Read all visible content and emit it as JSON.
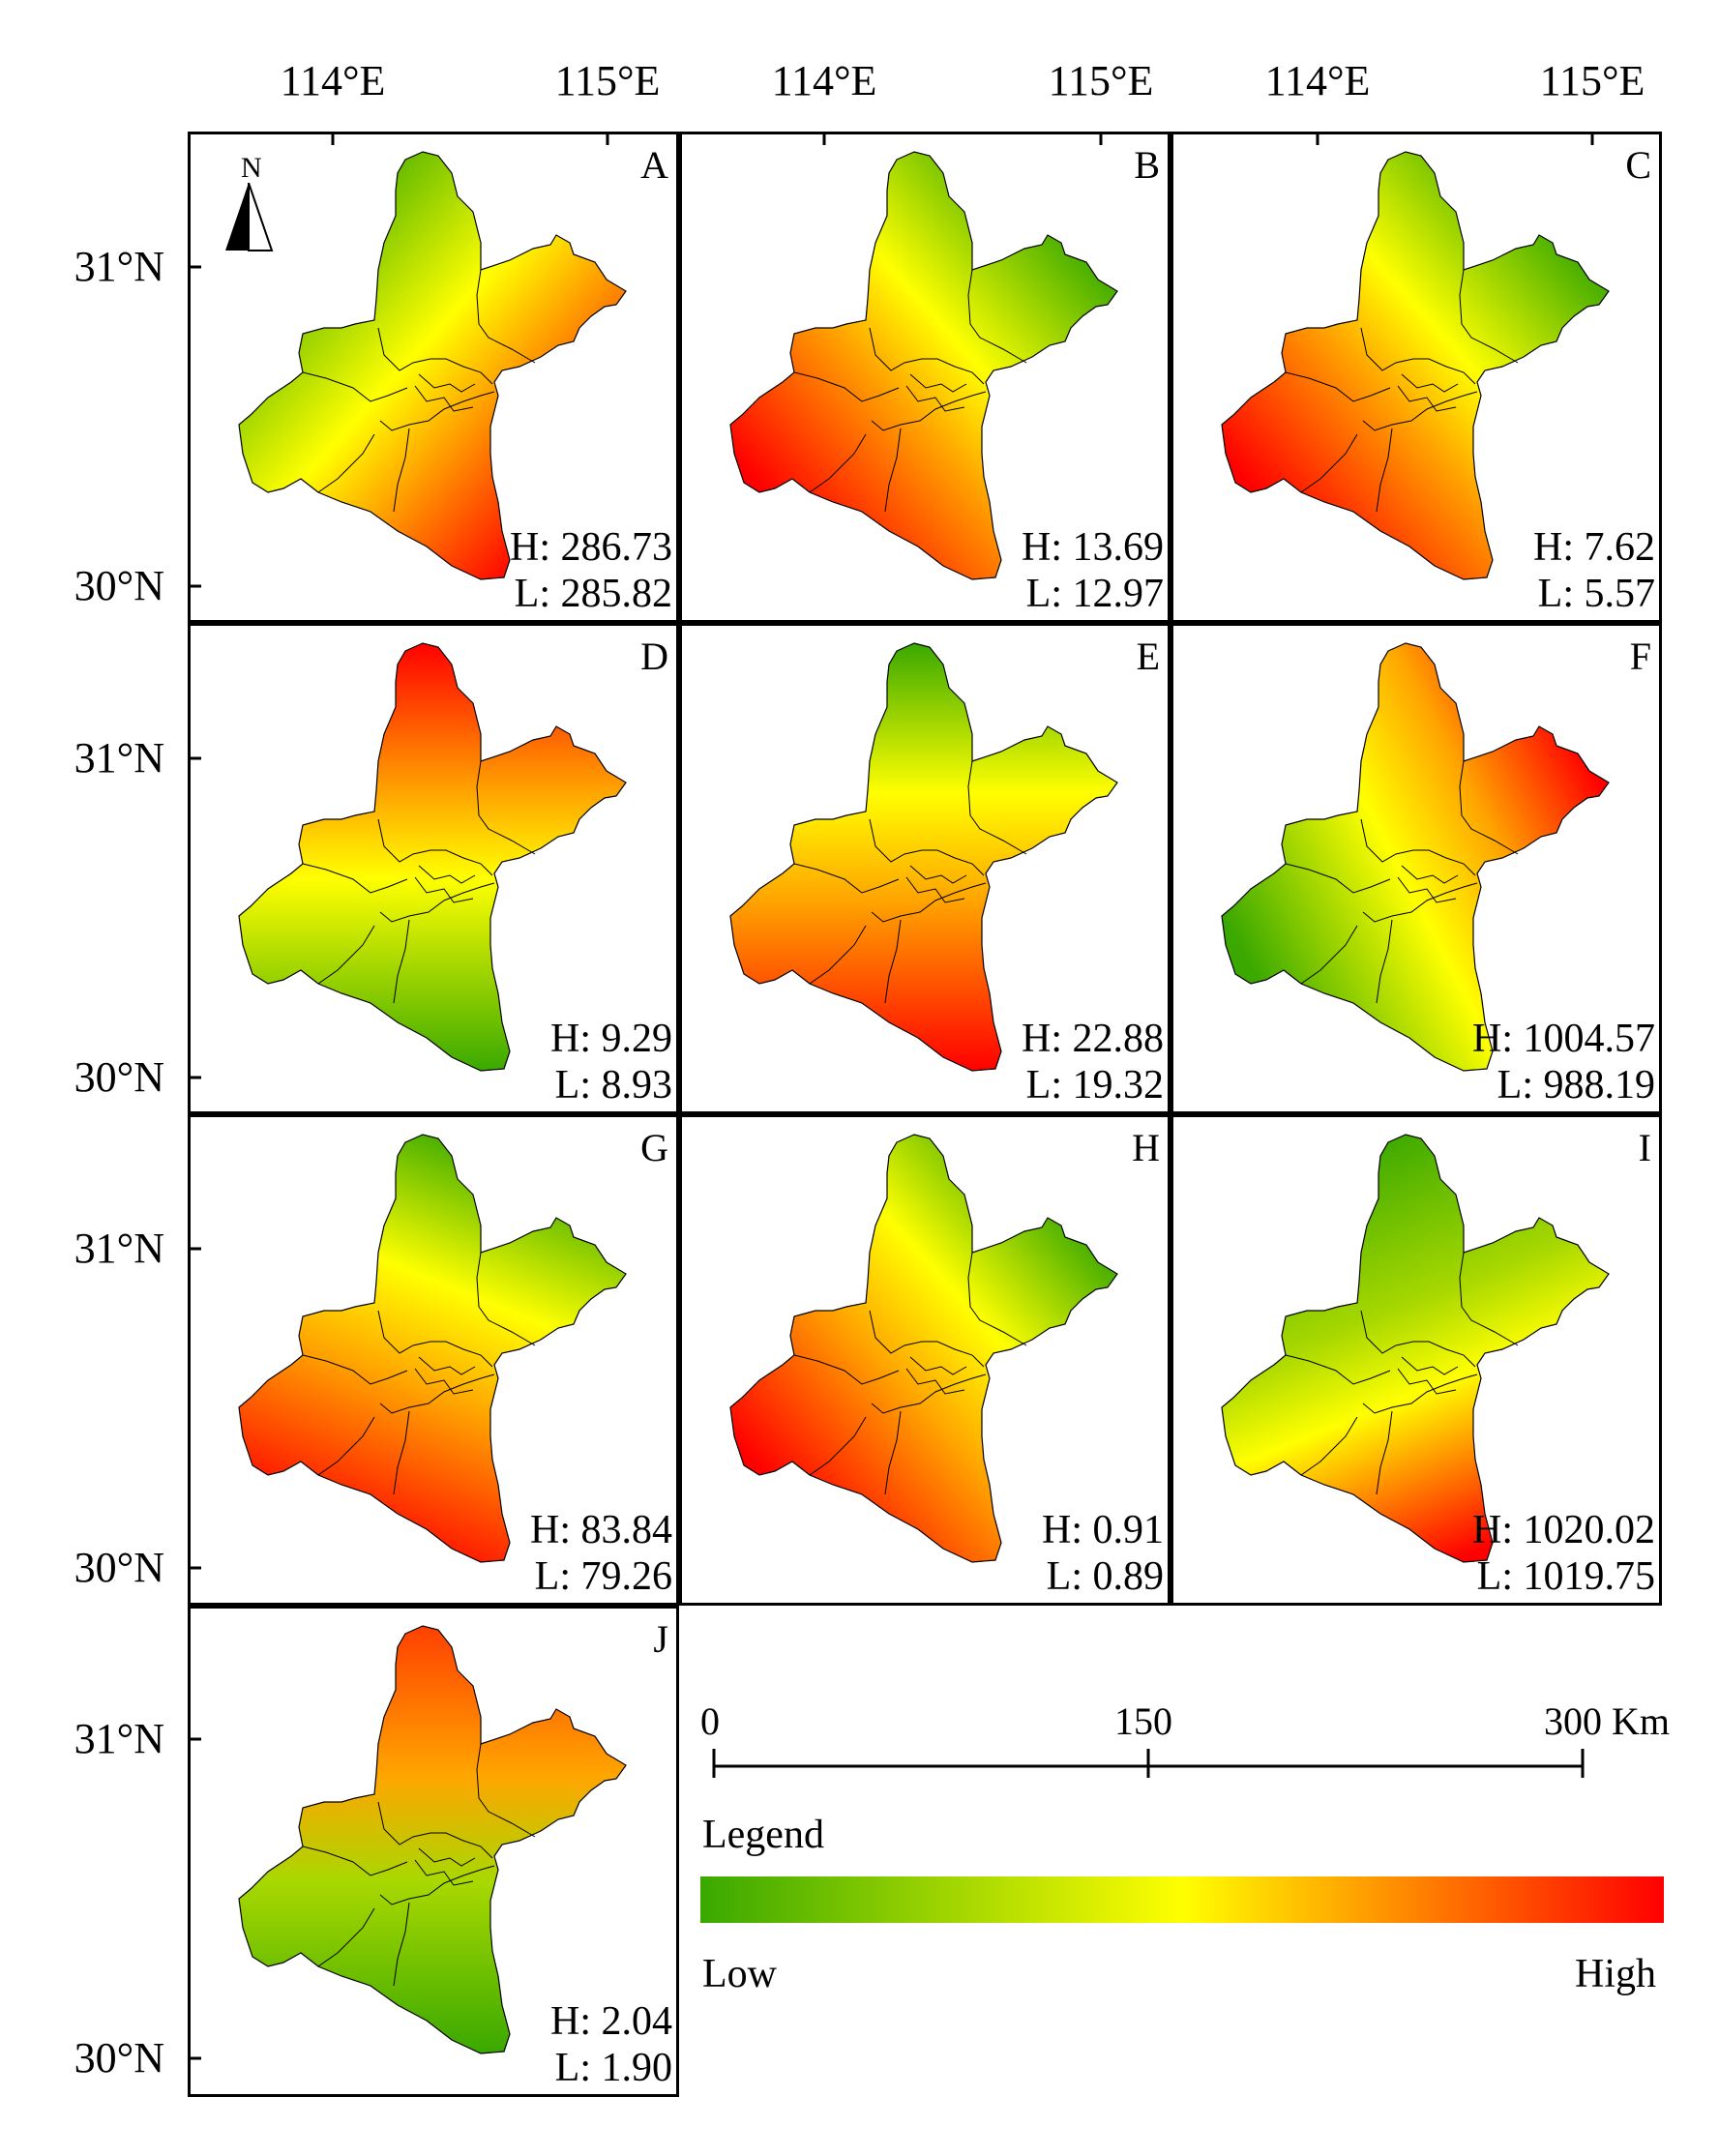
{
  "axes": {
    "lon_labels": [
      "114°E",
      "115°E",
      "114°E",
      "115°E",
      "114°E",
      "115°E"
    ],
    "lat_labels": [
      "31°N",
      "30°N",
      "31°N",
      "30°N",
      "31°N",
      "30°N",
      "31°N",
      "30°N"
    ]
  },
  "north_arrow": {
    "label": "N",
    "icon": "north-arrow-icon"
  },
  "panels": [
    {
      "id": "A",
      "high": "H: 286.73",
      "low": "L: 285.82",
      "gradient": {
        "angle": 135,
        "stops": [
          [
            "#3aa800",
            0
          ],
          [
            "#ffff00",
            0.45
          ],
          [
            "#ff8c00",
            0.7
          ],
          [
            "#ff0000",
            1
          ]
        ]
      }
    },
    {
      "id": "B",
      "high": "H: 13.69",
      "low": "L: 12.97",
      "gradient": {
        "angle": 45,
        "stops": [
          [
            "#ff0000",
            0
          ],
          [
            "#ffa500",
            0.4
          ],
          [
            "#ffff00",
            0.6
          ],
          [
            "#3aa800",
            1
          ]
        ]
      }
    },
    {
      "id": "C",
      "high": "H: 7.62",
      "low": "L: 5.57",
      "gradient": {
        "angle": 45,
        "stops": [
          [
            "#ff0000",
            0
          ],
          [
            "#ffa500",
            0.4
          ],
          [
            "#ffff00",
            0.6
          ],
          [
            "#3aa800",
            1
          ]
        ]
      }
    },
    {
      "id": "D",
      "high": "H: 9.29",
      "low": "L: 8.93",
      "gradient": {
        "angle": 180,
        "stops": [
          [
            "#ff0000",
            0
          ],
          [
            "#ffa500",
            0.35
          ],
          [
            "#ffff00",
            0.55
          ],
          [
            "#3aa800",
            1
          ]
        ]
      }
    },
    {
      "id": "E",
      "high": "H: 22.88",
      "low": "L: 19.32",
      "gradient": {
        "angle": 180,
        "stops": [
          [
            "#3aa800",
            0
          ],
          [
            "#ffff00",
            0.35
          ],
          [
            "#ffa500",
            0.6
          ],
          [
            "#ff0000",
            1
          ]
        ]
      }
    },
    {
      "id": "F",
      "high": "H: 1004.57",
      "low": "L: 988.19",
      "gradient": {
        "angle": 60,
        "stops": [
          [
            "#3aa800",
            0
          ],
          [
            "#ffff00",
            0.45
          ],
          [
            "#ffa500",
            0.7
          ],
          [
            "#ff0000",
            1
          ]
        ]
      }
    },
    {
      "id": "G",
      "high": "H: 83.84",
      "low": "L: 79.26",
      "gradient": {
        "angle": 200,
        "stops": [
          [
            "#3aa800",
            0
          ],
          [
            "#ffff00",
            0.35
          ],
          [
            "#ffa500",
            0.6
          ],
          [
            "#ff0000",
            1
          ]
        ]
      }
    },
    {
      "id": "H",
      "high": "H: 0.91",
      "low": "L: 0.89",
      "gradient": {
        "angle": 225,
        "stops": [
          [
            "#3aa800",
            0
          ],
          [
            "#ffff00",
            0.35
          ],
          [
            "#ffa500",
            0.6
          ],
          [
            "#ff0000",
            1
          ]
        ]
      }
    },
    {
      "id": "I",
      "high": "H: 1020.02",
      "low": "L: 1019.75",
      "gradient": {
        "angle": 160,
        "stops": [
          [
            "#3aa800",
            0
          ],
          [
            "#a8d800",
            0.4
          ],
          [
            "#ffff00",
            0.6
          ],
          [
            "#ff0000",
            1
          ]
        ]
      }
    },
    {
      "id": "J",
      "high": "H: 2.04",
      "low": "L: 1.90",
      "gradient": {
        "angle": 180,
        "stops": [
          [
            "#ff4000",
            0
          ],
          [
            "#ffa500",
            0.35
          ],
          [
            "#a8d800",
            0.6
          ],
          [
            "#3aa800",
            1
          ]
        ]
      }
    }
  ],
  "scale_bar": {
    "labels": [
      "0",
      "150",
      "300 Km"
    ]
  },
  "legend": {
    "title": "Legend",
    "low_label": "Low",
    "high_label": "High",
    "colors": [
      "#3aa800",
      "#ffff00",
      "#ff0000"
    ]
  }
}
